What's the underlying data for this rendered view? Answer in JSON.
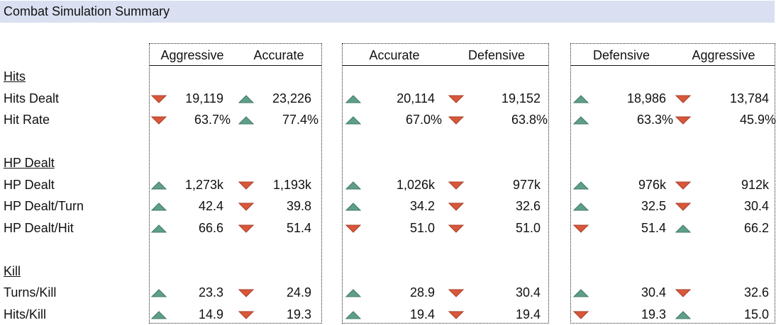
{
  "title": "Combat Simulation Summary",
  "colors": {
    "up": "#5f9f8a",
    "up_border": "#3f7a66",
    "down": "#d9573a",
    "down_border": "#a9402a",
    "title_bg": "#dae0f2"
  },
  "rows": [
    {
      "label": "Hits",
      "section": true
    },
    {
      "label": "Hits Dealt",
      "cells": [
        [
          "down",
          "19,119"
        ],
        [
          "up",
          "23,226"
        ],
        [
          "up",
          "20,114"
        ],
        [
          "down",
          "19,152"
        ],
        [
          "up",
          "18,986"
        ],
        [
          "down",
          "13,784"
        ]
      ]
    },
    {
      "label": "Hit Rate",
      "cells": [
        [
          "down",
          "63.7%"
        ],
        [
          "up",
          "77.4%"
        ],
        [
          "up",
          "67.0%"
        ],
        [
          "down",
          "63.8%"
        ],
        [
          "up",
          "63.3%"
        ],
        [
          "down",
          "45.9%"
        ]
      ]
    },
    {
      "label": "",
      "blank": true
    },
    {
      "label": "HP Dealt",
      "section": true
    },
    {
      "label": "HP Dealt",
      "cells": [
        [
          "up",
          "1,273k"
        ],
        [
          "down",
          "1,193k"
        ],
        [
          "up",
          "1,026k"
        ],
        [
          "down",
          "977k"
        ],
        [
          "up",
          "976k"
        ],
        [
          "down",
          "912k"
        ]
      ]
    },
    {
      "label": "HP Dealt/Turn",
      "cells": [
        [
          "up",
          "42.4"
        ],
        [
          "down",
          "39.8"
        ],
        [
          "up",
          "34.2"
        ],
        [
          "down",
          "32.6"
        ],
        [
          "up",
          "32.5"
        ],
        [
          "down",
          "30.4"
        ]
      ]
    },
    {
      "label": "HP Dealt/Hit",
      "cells": [
        [
          "up",
          "66.6"
        ],
        [
          "down",
          "51.4"
        ],
        [
          "down",
          "51.0"
        ],
        [
          "down",
          "51.0"
        ],
        [
          "down",
          "51.4"
        ],
        [
          "up",
          "66.2"
        ]
      ]
    },
    {
      "label": "",
      "blank": true
    },
    {
      "label": "Kill",
      "section": true
    },
    {
      "label": "Turns/Kill",
      "cells": [
        [
          "up",
          "23.3"
        ],
        [
          "down",
          "24.9"
        ],
        [
          "up",
          "28.9"
        ],
        [
          "down",
          "30.4"
        ],
        [
          "up",
          "30.4"
        ],
        [
          "down",
          "32.6"
        ]
      ]
    },
    {
      "label": "Hits/Kill",
      "cells": [
        [
          "up",
          "14.9"
        ],
        [
          "down",
          "19.3"
        ],
        [
          "up",
          "19.4"
        ],
        [
          "down",
          "19.4"
        ],
        [
          "down",
          "19.3"
        ],
        [
          "up",
          "15.0"
        ]
      ]
    }
  ],
  "comparisons": [
    {
      "headers": [
        "Aggressive",
        "Accurate"
      ]
    },
    {
      "headers": [
        "Accurate",
        "Defensive"
      ]
    },
    {
      "headers": [
        "Defensive",
        "Aggressive"
      ]
    }
  ]
}
